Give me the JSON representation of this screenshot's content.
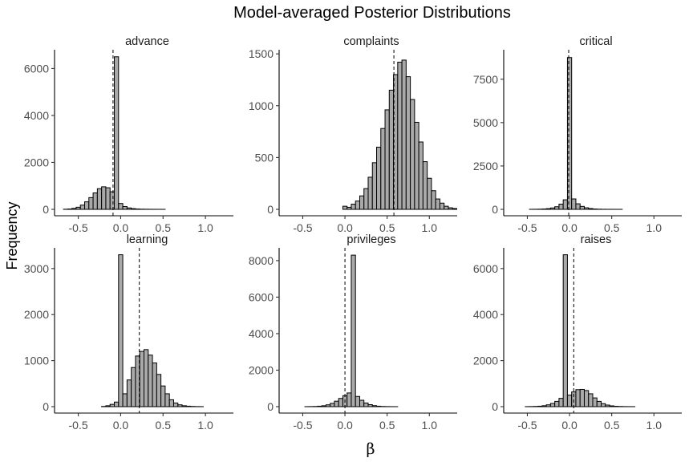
{
  "chart_data": {
    "type": "bar",
    "title": "Model-averaged Posterior Distributions",
    "xlabel": "β",
    "ylabel": "Frequency",
    "grid": false,
    "layout": "facet grid, 2 rows x 3 columns, shared x axis",
    "bar_fill": "#a9a9a9",
    "bar_outline": "#000000",
    "reference_line": "dashed vertical line at posterior mean",
    "x_domain": [
      -0.78,
      1.33
    ],
    "x_ticks": [
      -0.5,
      0.0,
      0.5,
      1.0
    ],
    "x_tick_labels": [
      "-0.5",
      "0.0",
      "0.5",
      "1.0"
    ],
    "bin_width": 0.05,
    "first_bin_center": -0.7,
    "panels": [
      {
        "label": "advance",
        "ylim": [
          0,
          6800
        ],
        "y_ticks": [
          0,
          2000,
          4000,
          6000
        ],
        "y_tick_labels": [
          "0",
          "2000",
          "4000",
          "6000"
        ],
        "mean": -0.09,
        "values": [
          0,
          5,
          15,
          40,
          90,
          180,
          320,
          500,
          700,
          880,
          960,
          920,
          750,
          6500,
          250,
          120,
          60,
          30,
          15,
          8,
          5,
          3,
          2,
          1,
          1,
          0,
          0,
          0,
          0,
          0,
          0,
          0,
          0,
          0,
          0,
          0,
          0,
          0,
          0,
          0,
          0
        ]
      },
      {
        "label": "complaints",
        "ylim": [
          0,
          1540
        ],
        "y_ticks": [
          0,
          500,
          1000,
          1500
        ],
        "y_tick_labels": [
          "0",
          "500",
          "1000",
          "1500"
        ],
        "mean": 0.58,
        "values": [
          0,
          0,
          0,
          0,
          0,
          0,
          0,
          0,
          0,
          0,
          0,
          0,
          0,
          0,
          30,
          20,
          50,
          80,
          130,
          200,
          310,
          450,
          600,
          780,
          960,
          1150,
          1300,
          1420,
          1440,
          1280,
          1060,
          840,
          650,
          460,
          300,
          180,
          100,
          60,
          30,
          15,
          8
        ]
      },
      {
        "label": "critical",
        "ylim": [
          0,
          9200
        ],
        "y_ticks": [
          0,
          2500,
          5000,
          7500
        ],
        "y_tick_labels": [
          "0",
          "2500",
          "5000",
          "7500"
        ],
        "mean": -0.01,
        "values": [
          0,
          0,
          0,
          0,
          0,
          2,
          5,
          10,
          20,
          40,
          80,
          150,
          300,
          550,
          8750,
          600,
          320,
          170,
          90,
          45,
          20,
          10,
          5,
          3,
          2,
          1,
          1,
          0,
          0,
          0,
          0,
          0,
          0,
          0,
          0,
          0,
          0,
          0,
          0,
          0,
          0
        ]
      },
      {
        "label": "learning",
        "ylim": [
          0,
          3450
        ],
        "y_ticks": [
          0,
          1000,
          2000,
          3000
        ],
        "y_tick_labels": [
          "0",
          "1000",
          "2000",
          "3000"
        ],
        "mean": 0.22,
        "values": [
          0,
          0,
          0,
          0,
          0,
          0,
          0,
          0,
          0,
          0,
          5,
          20,
          50,
          100,
          3300,
          280,
          580,
          850,
          1100,
          1200,
          1240,
          1120,
          950,
          700,
          450,
          280,
          150,
          80,
          40,
          20,
          10,
          5,
          2,
          1,
          0,
          0,
          0,
          0,
          0,
          0,
          0
        ]
      },
      {
        "label": "privileges",
        "ylim": [
          0,
          8700
        ],
        "y_ticks": [
          0,
          2000,
          4000,
          6000,
          8000
        ],
        "y_tick_labels": [
          "0",
          "2000",
          "4000",
          "6000",
          "8000"
        ],
        "mean": 0.0,
        "values": [
          0,
          0,
          0,
          0,
          0,
          2,
          5,
          10,
          25,
          50,
          100,
          180,
          300,
          450,
          600,
          750,
          8300,
          560,
          350,
          200,
          110,
          55,
          25,
          10,
          5,
          2,
          1,
          0,
          0,
          0,
          0,
          0,
          0,
          0,
          0,
          0,
          0,
          0,
          0,
          0,
          0
        ]
      },
      {
        "label": "raises",
        "ylim": [
          0,
          6900
        ],
        "y_ticks": [
          0,
          2000,
          4000,
          6000
        ],
        "y_tick_labels": [
          "0",
          "2000",
          "4000",
          "6000"
        ],
        "mean": 0.05,
        "values": [
          0,
          0,
          0,
          0,
          2,
          5,
          10,
          20,
          40,
          80,
          140,
          230,
          360,
          6600,
          500,
          640,
          740,
          750,
          700,
          560,
          380,
          230,
          130,
          70,
          35,
          15,
          8,
          4,
          2,
          1,
          0,
          0,
          0,
          0,
          0,
          0,
          0,
          0,
          0,
          0,
          0
        ]
      }
    ]
  }
}
